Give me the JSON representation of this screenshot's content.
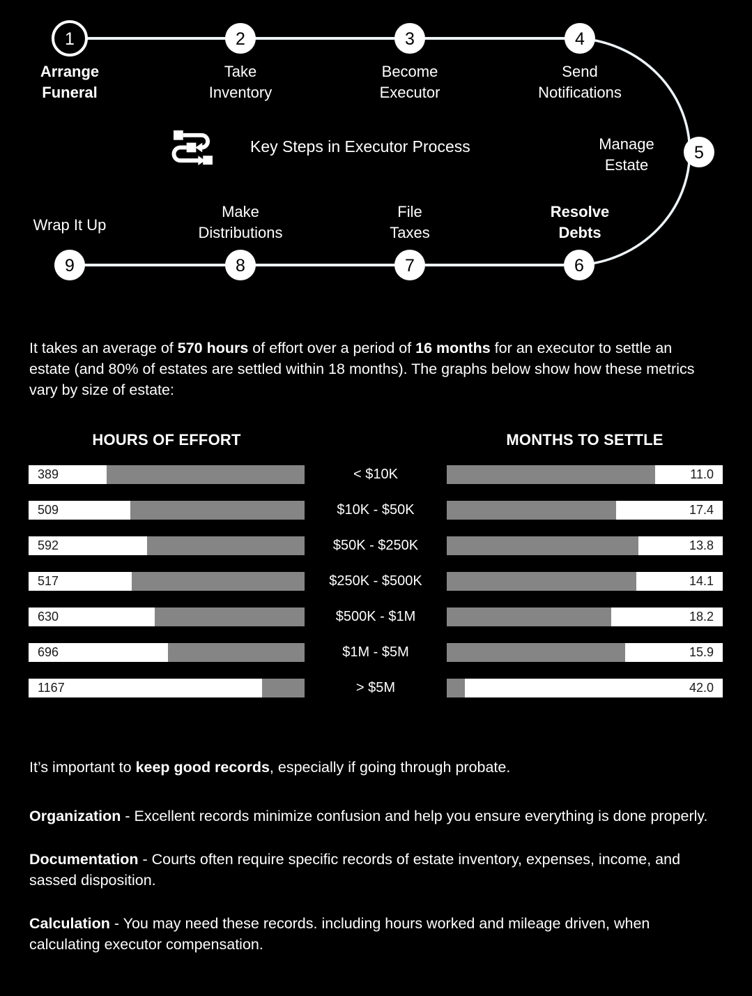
{
  "page": {
    "background": "#000000",
    "text_color": "#ffffff",
    "bar_gray": "#858585",
    "bar_white": "#ffffff",
    "connector_color": "#eef4f9"
  },
  "flow": {
    "title": "Key Steps in Executor Process",
    "icon": "process-flow-icon",
    "steps": [
      {
        "num": "1",
        "lines": [
          "Arrange",
          "Funeral"
        ],
        "bold": true,
        "style": "outlined"
      },
      {
        "num": "2",
        "lines": [
          "Take",
          "Inventory"
        ],
        "bold": false,
        "style": "filled"
      },
      {
        "num": "3",
        "lines": [
          "Become",
          "Executor"
        ],
        "bold": false,
        "style": "filled"
      },
      {
        "num": "4",
        "lines": [
          "Send",
          "Notifications"
        ],
        "bold": false,
        "style": "filled"
      },
      {
        "num": "5",
        "lines": [
          "Manage",
          "Estate"
        ],
        "bold": false,
        "style": "filled"
      },
      {
        "num": "6",
        "lines": [
          "Resolve",
          "Debts"
        ],
        "bold": true,
        "style": "filled"
      },
      {
        "num": "7",
        "lines": [
          "File",
          "Taxes"
        ],
        "bold": false,
        "style": "filled"
      },
      {
        "num": "8",
        "lines": [
          "Make",
          "Distributions"
        ],
        "bold": false,
        "style": "filled"
      },
      {
        "num": "9",
        "lines": [
          "Wrap It Up"
        ],
        "bold": false,
        "style": "filled"
      }
    ]
  },
  "intro": {
    "segments": [
      {
        "t": "It takes an average of ",
        "b": false
      },
      {
        "t": "570 hours",
        "b": true
      },
      {
        "t": " of effort over a period of ",
        "b": false
      },
      {
        "t": "16 months",
        "b": true
      },
      {
        "t": " for an executor to settle an estate (and 80% of estates are settled  within 18 months). The graphs below show how these metrics vary by size of estate:",
        "b": false
      }
    ]
  },
  "chart_data": {
    "type": "bar",
    "orientation": "horizontal",
    "categories": [
      "< $10K",
      "$10K - $50K",
      "$50K - $250K",
      "$250K - $500K",
      "$500K - $1M",
      "$1M - $5M",
      "> $5M"
    ],
    "series": [
      {
        "name": "HOURS OF EFFORT",
        "values": [
          389,
          509,
          592,
          517,
          630,
          696,
          1167
        ],
        "labels": [
          "389",
          "509",
          "592",
          "517",
          "630",
          "696",
          "1167"
        ],
        "axis_max": 1380,
        "value_anchor": "left"
      },
      {
        "name": "MONTHS TO SETTLE",
        "values": [
          11.0,
          17.4,
          13.8,
          14.1,
          18.2,
          15.9,
          42.0
        ],
        "labels": [
          "11.0",
          "17.4",
          "13.8",
          "14.1",
          "18.2",
          "15.9",
          "42.0"
        ],
        "axis_max": 45,
        "value_anchor": "right"
      }
    ]
  },
  "records": {
    "paragraphs": [
      {
        "segments": [
          {
            "t": "It’s important to ",
            "b": false
          },
          {
            "t": "keep good records",
            "b": true
          },
          {
            "t": ", especially if going through probate.",
            "b": false
          }
        ]
      },
      {
        "segments": [
          {
            "t": "Organization",
            "b": true
          },
          {
            "t": " - Excellent records minimize confusion and help you ensure everything is done properly.",
            "b": false
          }
        ]
      },
      {
        "segments": [
          {
            "t": "Documentation",
            "b": true
          },
          {
            "t": " - Courts often require specific records of estate inventory, expenses, income, and sassed disposition.",
            "b": false
          }
        ]
      },
      {
        "segments": [
          {
            "t": "Calculation",
            "b": true
          },
          {
            "t": " - You may need these records. including hours worked and mileage driven, when calculating executor compensation.",
            "b": false
          }
        ]
      }
    ]
  }
}
